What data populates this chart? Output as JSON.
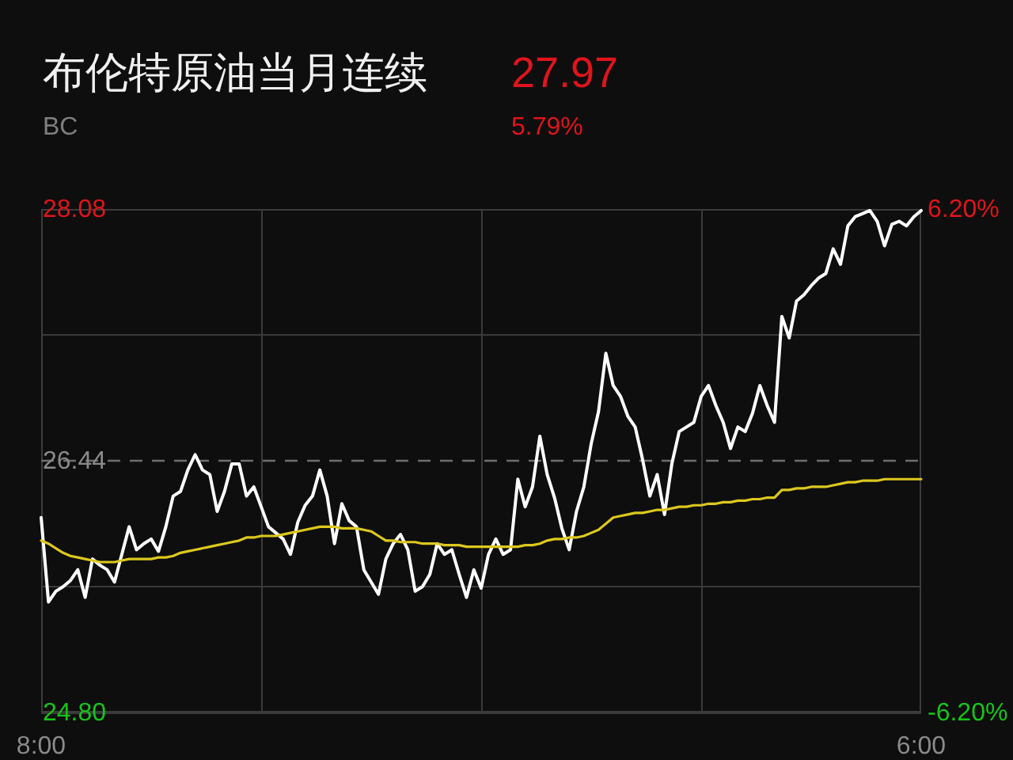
{
  "chart_data": {
    "type": "line",
    "title": "布伦特原油当月连续",
    "subtitle": "BC",
    "annotations": [
      "27.97",
      "5.79%"
    ],
    "categories": [
      "8:00",
      null,
      null,
      null,
      null,
      null,
      null,
      null,
      null,
      null,
      null,
      null,
      null,
      null,
      null,
      null,
      null,
      null,
      null,
      null,
      null,
      null,
      null,
      null,
      null,
      null,
      null,
      null,
      null,
      null,
      null,
      null,
      null,
      null,
      null,
      null,
      null,
      null,
      null,
      null,
      null,
      null,
      null,
      null,
      null,
      null,
      null,
      null,
      null,
      null,
      null,
      null,
      null,
      null,
      null,
      null,
      null,
      null,
      null,
      null,
      null,
      null,
      null,
      null,
      null,
      null,
      null,
      null,
      null,
      null,
      null,
      null,
      null,
      null,
      null,
      null,
      null,
      null,
      null,
      null,
      null,
      null,
      null,
      null,
      null,
      null,
      null,
      null,
      null,
      null,
      null,
      null,
      null,
      null,
      null,
      null,
      null,
      null,
      null,
      null,
      null,
      null,
      null,
      null,
      null,
      null,
      null,
      null,
      null,
      null,
      null,
      null,
      null,
      null,
      null,
      null,
      null,
      null,
      null,
      null,
      "6:00"
    ],
    "series": [
      {
        "color": "#ffffff",
        "values": [
          26.07,
          25.52,
          25.59,
          25.62,
          25.66,
          25.73,
          25.55,
          25.8,
          25.76,
          25.73,
          25.65,
          25.83,
          26.01,
          25.86,
          25.9,
          25.93,
          25.85,
          26.01,
          26.21,
          26.24,
          26.38,
          26.48,
          26.38,
          26.35,
          26.11,
          26.24,
          26.42,
          26.42,
          26.21,
          26.27,
          26.14,
          26.01,
          25.97,
          25.93,
          25.83,
          26.04,
          26.15,
          26.21,
          26.38,
          26.21,
          25.9,
          26.16,
          26.05,
          26.01,
          25.73,
          25.65,
          25.57,
          25.8,
          25.9,
          25.96,
          25.86,
          25.59,
          25.62,
          25.7,
          25.9,
          25.83,
          25.86,
          25.7,
          25.55,
          25.73,
          25.61,
          25.83,
          25.93,
          25.83,
          25.86,
          26.32,
          26.14,
          26.27,
          26.6,
          26.35,
          26.2,
          26.0,
          25.86,
          26.11,
          26.27,
          26.55,
          26.76,
          27.14,
          26.93,
          26.86,
          26.73,
          26.66,
          26.45,
          26.21,
          26.35,
          26.09,
          26.42,
          26.63,
          26.66,
          26.69,
          26.86,
          26.93,
          26.8,
          26.69,
          26.52,
          26.66,
          26.63,
          26.75,
          26.93,
          26.8,
          26.69,
          27.38,
          27.24,
          27.48,
          27.52,
          27.58,
          27.63,
          27.66,
          27.82,
          27.72,
          27.97,
          28.03,
          28.05,
          28.07,
          28.0,
          27.84,
          27.98,
          28.0,
          27.97,
          28.03,
          28.07
        ]
      },
      {
        "color": "#dcc81e",
        "values": [
          25.92,
          25.9,
          25.87,
          25.84,
          25.82,
          25.81,
          25.8,
          25.79,
          25.78,
          25.78,
          25.78,
          25.79,
          25.8,
          25.8,
          25.8,
          25.8,
          25.81,
          25.81,
          25.82,
          25.84,
          25.85,
          25.86,
          25.87,
          25.88,
          25.89,
          25.9,
          25.91,
          25.92,
          25.94,
          25.94,
          25.95,
          25.95,
          25.95,
          25.96,
          25.97,
          25.98,
          25.99,
          26.0,
          26.01,
          26.01,
          26.01,
          26.0,
          26.0,
          26.0,
          25.99,
          25.98,
          25.95,
          25.92,
          25.92,
          25.91,
          25.91,
          25.91,
          25.9,
          25.9,
          25.9,
          25.89,
          25.89,
          25.89,
          25.88,
          25.88,
          25.88,
          25.88,
          25.88,
          25.88,
          25.88,
          25.88,
          25.89,
          25.89,
          25.9,
          25.92,
          25.93,
          25.93,
          25.94,
          25.94,
          25.95,
          25.97,
          25.99,
          26.03,
          26.07,
          26.08,
          26.09,
          26.1,
          26.1,
          26.11,
          26.12,
          26.12,
          26.13,
          26.14,
          26.14,
          26.15,
          26.15,
          26.16,
          26.16,
          26.17,
          26.17,
          26.18,
          26.18,
          26.19,
          26.19,
          26.2,
          26.2,
          26.25,
          26.25,
          26.26,
          26.26,
          26.27,
          26.27,
          26.27,
          26.28,
          26.29,
          26.3,
          26.3,
          26.31,
          26.31,
          26.31,
          26.32,
          26.32,
          26.32,
          26.32,
          26.32,
          26.32
        ]
      }
    ],
    "ylim": [
      24.8,
      28.08
    ],
    "yticks": [
      {
        "value": 24.8,
        "label": "24.80"
      },
      {
        "value": 25.62,
        "label": null
      },
      {
        "value": 26.44,
        "label": "26.44"
      },
      {
        "value": 27.26,
        "label": null
      },
      {
        "value": 28.08,
        "label": "28.08"
      }
    ],
    "y2lim": [
      -6.2,
      6.2
    ],
    "y2ticks": [
      {
        "value": -6.2,
        "label": "-6.20%"
      },
      {
        "value": 6.2,
        "label": "6.20%"
      }
    ],
    "ref_lines": [
      {
        "axis": "y",
        "value": 26.44,
        "line_style": "dashed",
        "color": "#6e6e6e"
      }
    ],
    "grid": true,
    "line_style": "solid"
  }
}
